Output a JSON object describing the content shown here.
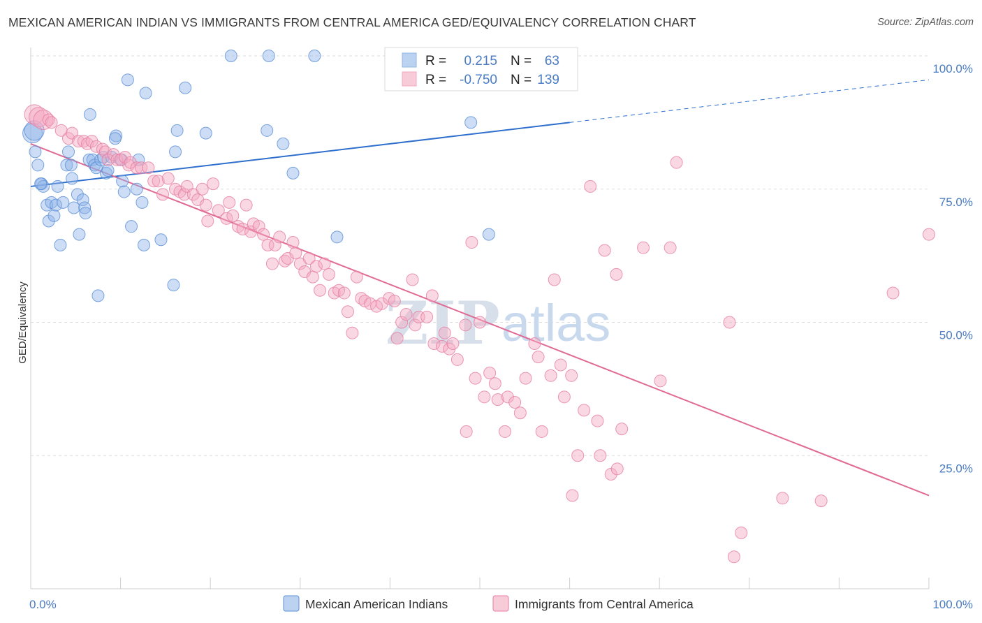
{
  "title": "MEXICAN AMERICAN INDIAN VS IMMIGRANTS FROM CENTRAL AMERICA GED/EQUIVALENCY CORRELATION CHART",
  "source": "Source: ZipAtlas.com",
  "watermark": {
    "zip": "ZIP",
    "atlas": "atlas"
  },
  "chart_data": {
    "type": "scatter",
    "ylabel": "GED/Equivalency",
    "xlim": [
      0,
      100
    ],
    "ylim": [
      0,
      100
    ],
    "x_tick_labels": [
      {
        "value": 0,
        "label": "0.0%"
      },
      {
        "value": 100,
        "label": "100.0%"
      }
    ],
    "y_tick_labels": [
      {
        "value": 25,
        "label": "25.0%"
      },
      {
        "value": 50,
        "label": "50.0%"
      },
      {
        "value": 75,
        "label": "75.0%"
      },
      {
        "value": 100,
        "label": "100.0%"
      }
    ],
    "grid": "horizontal dashed",
    "legend_position": "bottom",
    "stats_legend": [
      {
        "r_label": "R =",
        "r_value": "0.215",
        "n_label": "N =",
        "n_value": "63",
        "color": "#8fb4e8"
      },
      {
        "r_label": "R =",
        "r_value": "-0.750",
        "n_label": "N =",
        "n_value": "139",
        "color": "#f3a8c0"
      }
    ],
    "series": [
      {
        "name": "Mexican American Indians",
        "color": "#8fb4e8",
        "stroke": "#5b8fd6",
        "trend": {
          "x0": 0,
          "y0": 75.5,
          "x1": 60,
          "y1": 87.5,
          "dashed_to_x": 100,
          "dashed_to_y": 95.5,
          "color": "#2e6fce"
        },
        "points": [
          [
            0.2,
            85.5
          ],
          [
            0.5,
            82
          ],
          [
            0.8,
            79.5
          ],
          [
            1.2,
            76
          ],
          [
            1.4,
            75.5
          ],
          [
            1.8,
            72
          ],
          [
            2,
            69
          ],
          [
            2.3,
            72.5
          ],
          [
            2.6,
            70
          ],
          [
            2.8,
            72
          ],
          [
            3,
            75.5
          ],
          [
            3.3,
            64.5
          ],
          [
            3.6,
            72.5
          ],
          [
            4,
            79.5
          ],
          [
            4.2,
            82
          ],
          [
            4.5,
            79.5
          ],
          [
            4.6,
            77
          ],
          [
            4.8,
            71.5
          ],
          [
            5.2,
            74
          ],
          [
            5.4,
            66.5
          ],
          [
            5.8,
            73
          ],
          [
            6,
            71.5
          ],
          [
            6.1,
            70.5
          ],
          [
            6.6,
            89
          ],
          [
            6.5,
            80.5
          ],
          [
            6.9,
            80.5
          ],
          [
            7.1,
            79.5
          ],
          [
            7.3,
            79
          ],
          [
            7.5,
            55
          ],
          [
            7.8,
            80.5
          ],
          [
            8.1,
            81
          ],
          [
            8.4,
            78
          ],
          [
            8.6,
            78.5
          ],
          [
            9,
            81
          ],
          [
            9.5,
            85
          ],
          [
            9.4,
            84.5
          ],
          [
            10.1,
            80.5
          ],
          [
            10.2,
            76.5
          ],
          [
            10.4,
            74.5
          ],
          [
            10.8,
            95.5
          ],
          [
            11.2,
            68
          ],
          [
            11.8,
            75
          ],
          [
            12,
            80.5
          ],
          [
            12.4,
            72.5
          ],
          [
            12.6,
            64.5
          ],
          [
            12.8,
            93
          ],
          [
            14.5,
            65.5
          ],
          [
            15.9,
            57
          ],
          [
            16.1,
            82
          ],
          [
            16.3,
            86
          ],
          [
            17.2,
            94
          ],
          [
            19.5,
            85.5
          ],
          [
            22.3,
            100
          ],
          [
            26.3,
            86
          ],
          [
            26.5,
            100
          ],
          [
            28.1,
            83.5
          ],
          [
            29.2,
            78
          ],
          [
            31.6,
            100
          ],
          [
            34.1,
            66
          ],
          [
            49,
            87.5
          ],
          [
            51,
            66.5
          ],
          [
            0.4,
            86
          ],
          [
            1.1,
            76
          ]
        ]
      },
      {
        "name": "Immigrants from Central America",
        "color": "#f3a8c0",
        "stroke": "#e57ea2",
        "trend": {
          "x0": 0,
          "y0": 83.5,
          "x1": 100,
          "y1": 17.5,
          "color": "#e06a94"
        },
        "points": [
          [
            0.4,
            89
          ],
          [
            0.9,
            88.5
          ],
          [
            1.4,
            88
          ],
          [
            2,
            88
          ],
          [
            2.3,
            87.5
          ],
          [
            3.4,
            86
          ],
          [
            4.2,
            84.5
          ],
          [
            4.6,
            85.5
          ],
          [
            5.3,
            84
          ],
          [
            5.9,
            84
          ],
          [
            6.3,
            83.5
          ],
          [
            6.8,
            84
          ],
          [
            7.3,
            83
          ],
          [
            8,
            82.5
          ],
          [
            8.3,
            82
          ],
          [
            8.6,
            80.5
          ],
          [
            9.2,
            81.5
          ],
          [
            9.6,
            80.5
          ],
          [
            10,
            80.5
          ],
          [
            10.5,
            81
          ],
          [
            10.9,
            79.5
          ],
          [
            11.1,
            80
          ],
          [
            11.8,
            79
          ],
          [
            12.3,
            79
          ],
          [
            13.1,
            79
          ],
          [
            13.7,
            76.5
          ],
          [
            14.2,
            76.5
          ],
          [
            14.7,
            74
          ],
          [
            15.3,
            77
          ],
          [
            16.1,
            75
          ],
          [
            16.6,
            74.5
          ],
          [
            17.1,
            74
          ],
          [
            17.4,
            75.5
          ],
          [
            18.1,
            74
          ],
          [
            18.6,
            73
          ],
          [
            19.1,
            75
          ],
          [
            19.5,
            72
          ],
          [
            19.7,
            69
          ],
          [
            20.3,
            76
          ],
          [
            20.9,
            71
          ],
          [
            21.8,
            69.5
          ],
          [
            22.1,
            72.5
          ],
          [
            22.5,
            70
          ],
          [
            23.1,
            68
          ],
          [
            23.6,
            67.5
          ],
          [
            24,
            72
          ],
          [
            24.5,
            67
          ],
          [
            24.8,
            68.5
          ],
          [
            25.4,
            68
          ],
          [
            25.9,
            66.5
          ],
          [
            26.4,
            64.5
          ],
          [
            26.9,
            61
          ],
          [
            27.2,
            64.5
          ],
          [
            27.7,
            66
          ],
          [
            28.3,
            61.5
          ],
          [
            28.6,
            62
          ],
          [
            29.2,
            65
          ],
          [
            29.5,
            63
          ],
          [
            30,
            61
          ],
          [
            30.5,
            59.5
          ],
          [
            31,
            62
          ],
          [
            31.4,
            58.5
          ],
          [
            31.8,
            60.5
          ],
          [
            32.2,
            56
          ],
          [
            32.7,
            61
          ],
          [
            33.2,
            59
          ],
          [
            33.8,
            55.5
          ],
          [
            34.3,
            56
          ],
          [
            34.9,
            55.5
          ],
          [
            35.3,
            52
          ],
          [
            35.8,
            48
          ],
          [
            36.3,
            58.5
          ],
          [
            36.8,
            54.5
          ],
          [
            37.2,
            54
          ],
          [
            37.8,
            53.5
          ],
          [
            38.5,
            53
          ],
          [
            39.1,
            53.5
          ],
          [
            39.9,
            54.5
          ],
          [
            40.5,
            54
          ],
          [
            40.8,
            47
          ],
          [
            41.3,
            50
          ],
          [
            41.8,
            51.5
          ],
          [
            42.5,
            58
          ],
          [
            42.8,
            49.5
          ],
          [
            43.2,
            51
          ],
          [
            44.1,
            51
          ],
          [
            44.7,
            55
          ],
          [
            44.9,
            46
          ],
          [
            45.8,
            45.5
          ],
          [
            46.1,
            48
          ],
          [
            46.6,
            45
          ],
          [
            47,
            46
          ],
          [
            47.5,
            43
          ],
          [
            48.4,
            49.5
          ],
          [
            48.5,
            29.5
          ],
          [
            49.1,
            65
          ],
          [
            49.5,
            39.5
          ],
          [
            50,
            50
          ],
          [
            50.5,
            36
          ],
          [
            51.1,
            40.5
          ],
          [
            51.7,
            38.5
          ],
          [
            52,
            35.5
          ],
          [
            52.8,
            29.5
          ],
          [
            53.1,
            36
          ],
          [
            53.9,
            35
          ],
          [
            54.5,
            33
          ],
          [
            55.1,
            39.5
          ],
          [
            56.1,
            46
          ],
          [
            56.5,
            43.5
          ],
          [
            56.9,
            29.5
          ],
          [
            57.9,
            40
          ],
          [
            58.3,
            58
          ],
          [
            59,
            42
          ],
          [
            59.4,
            36
          ],
          [
            60.2,
            40
          ],
          [
            60.9,
            25
          ],
          [
            60.3,
            17.5
          ],
          [
            61.6,
            33.5
          ],
          [
            62.3,
            75.5
          ],
          [
            63.1,
            31.5
          ],
          [
            63.4,
            25
          ],
          [
            63.9,
            63.5
          ],
          [
            64.6,
            21.5
          ],
          [
            65.2,
            59
          ],
          [
            65.8,
            30
          ],
          [
            65.3,
            22.5
          ],
          [
            68.2,
            64
          ],
          [
            70.1,
            39
          ],
          [
            71.2,
            64
          ],
          [
            71.9,
            80
          ],
          [
            77.8,
            50
          ],
          [
            78.3,
            6
          ],
          [
            79.1,
            10.5
          ],
          [
            83.7,
            17
          ],
          [
            88,
            16.5
          ],
          [
            96,
            55.5
          ],
          [
            100,
            66.5
          ],
          [
            53.2,
            100
          ]
        ]
      }
    ]
  }
}
